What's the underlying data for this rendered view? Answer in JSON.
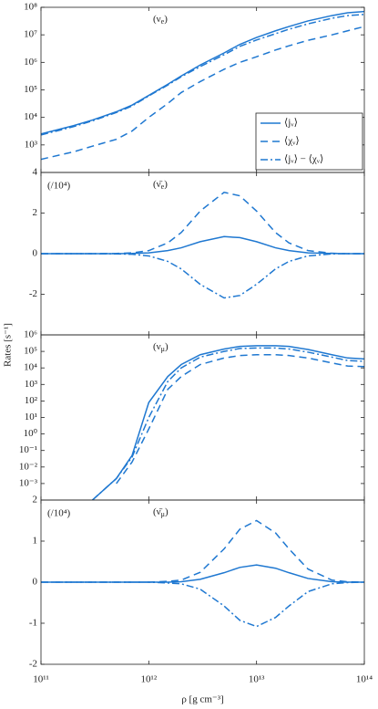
{
  "chart_data": [
    {
      "type": "line",
      "label": [
        "(ν",
        "e",
        ")"
      ],
      "xlim": [
        100000000000.0,
        100000000000000.0
      ],
      "xlog": true,
      "ylog": true,
      "ylim": [
        100,
        100000000
      ],
      "yticks": [
        {
          "value": 1000,
          "label": "10³"
        },
        {
          "value": 10000,
          "label": "10⁴"
        },
        {
          "value": 100000,
          "label": "10⁵"
        },
        {
          "value": 1000000,
          "label": "10⁶"
        },
        {
          "value": 10000000,
          "label": "10⁷"
        },
        {
          "value": 100000000,
          "label": "10⁸"
        }
      ],
      "legend": "lower right",
      "x": [
        100000000000.0,
        200000000000.0,
        300000000000.0,
        500000000000.0,
        700000000000.0,
        1000000000000.0,
        1500000000000.0,
        2000000000000.0,
        3000000000000.0,
        5000000000000.0,
        7000000000000.0,
        10000000000000.0,
        15000000000000.0,
        20000000000000.0,
        30000000000000.0,
        50000000000000.0,
        70000000000000.0,
        100000000000000.0
      ],
      "series": [
        {
          "name": "⟨jᵥ⟩",
          "color": "#1f78d1",
          "dash": "solid",
          "values": [
            2500,
            5000,
            8000,
            16000,
            28000,
            63000,
            160000,
            320000,
            800000,
            2200000,
            4500000,
            8000000,
            14000000,
            20000000,
            32000000,
            50000000,
            63000000,
            70000000
          ]
        },
        {
          "name": "⟨χᵥ⟩",
          "color": "#1f78d1",
          "dash": "dashed",
          "values": [
            300,
            560,
            900,
            1600,
            3200,
            10000,
            32000,
            80000,
            200000,
            560000,
            1000000,
            1600000,
            2800000,
            4000000,
            6300000,
            10000000,
            14000000,
            20000000
          ]
        },
        {
          "name": "⟨jᵥ⟩ − ⟨χᵥ⟩",
          "color": "#1f78d1",
          "dash": "dashdot",
          "values": [
            2300,
            4600,
            7500,
            15000,
            26000,
            60000,
            150000,
            300000,
            700000,
            1900000,
            3800000,
            6500000,
            11000000,
            16000000,
            25000000,
            40000000,
            50000000,
            55000000
          ]
        }
      ]
    },
    {
      "type": "line",
      "label": [
        "(ν̄",
        "e",
        ")"
      ],
      "scale_note": "(/10⁴)",
      "xlim": [
        100000000000.0,
        100000000000000.0
      ],
      "xlog": true,
      "ylog": false,
      "ylim": [
        -4,
        4
      ],
      "yticks": [
        -2,
        0,
        2,
        4
      ],
      "x": [
        100000000000.0,
        200000000000.0,
        300000000000.0,
        500000000000.0,
        700000000000.0,
        1000000000000.0,
        1500000000000.0,
        2000000000000.0,
        3000000000000.0,
        5000000000000.0,
        7000000000000.0,
        10000000000000.0,
        15000000000000.0,
        20000000000000.0,
        30000000000000.0,
        50000000000000.0,
        70000000000000.0,
        100000000000000.0
      ],
      "series": [
        {
          "color": "#1f78d1",
          "dash": "solid",
          "values": [
            0,
            0,
            0,
            0,
            0.01,
            0.04,
            0.15,
            0.29,
            0.59,
            0.84,
            0.79,
            0.59,
            0.29,
            0.15,
            0.04,
            0.01,
            0,
            0
          ]
        },
        {
          "color": "#1f78d1",
          "dash": "dashed",
          "values": [
            0,
            0,
            0,
            0.01,
            0.04,
            0.15,
            0.53,
            1.04,
            2.1,
            3.02,
            2.85,
            2.1,
            1.04,
            0.53,
            0.15,
            0.02,
            0,
            0
          ]
        },
        {
          "color": "#1f78d1",
          "dash": "dashdot",
          "values": [
            0,
            0,
            0,
            -0.01,
            -0.03,
            -0.11,
            -0.38,
            -0.75,
            -1.51,
            -2.18,
            -2.06,
            -1.51,
            -0.75,
            -0.38,
            -0.11,
            -0.01,
            0,
            0
          ]
        }
      ]
    },
    {
      "type": "line",
      "label": [
        "(ν",
        "μ",
        ")"
      ],
      "ylabel": "Rates [s⁻¹]",
      "xlim": [
        100000000000.0,
        100000000000000.0
      ],
      "xlog": true,
      "ylog": true,
      "ylim": [
        0.0001,
        1000000
      ],
      "yticks": [
        {
          "value": 0.001,
          "label": "10⁻³"
        },
        {
          "value": 0.01,
          "label": "10⁻²"
        },
        {
          "value": 0.1,
          "label": "10⁻¹"
        },
        {
          "value": 1,
          "label": "10⁰"
        },
        {
          "value": 10,
          "label": "10¹"
        },
        {
          "value": 100,
          "label": "10²"
        },
        {
          "value": 1000,
          "label": "10³"
        },
        {
          "value": 10000,
          "label": "10⁴"
        },
        {
          "value": 100000,
          "label": "10⁵"
        },
        {
          "value": 1000000,
          "label": "10⁶"
        }
      ],
      "x": [
        100000000000.0,
        200000000000.0,
        300000000000.0,
        500000000000.0,
        700000000000.0,
        1000000000000.0,
        1500000000000.0,
        2000000000000.0,
        3000000000000.0,
        5000000000000.0,
        7000000000000.0,
        10000000000000.0,
        15000000000000.0,
        20000000000000.0,
        30000000000000.0,
        50000000000000.0,
        70000000000000.0,
        100000000000000.0
      ],
      "series": [
        {
          "color": "#1f78d1",
          "dash": "solid",
          "values": [
            null,
            null,
            0.0001,
            0.002,
            0.05,
            80,
            3000,
            16000,
            63000,
            140000,
            200000,
            220000,
            220000,
            200000,
            130000,
            63000,
            40000,
            35000
          ]
        },
        {
          "color": "#1f78d1",
          "dash": "dashed",
          "values": [
            null,
            null,
            null,
            0.001,
            0.02,
            2,
            500,
            3000,
            16000,
            40000,
            56000,
            63000,
            63000,
            56000,
            40000,
            20000,
            13000,
            12000
          ]
        },
        {
          "color": "#1f78d1",
          "dash": "dashdot",
          "values": [
            null,
            null,
            0.0001,
            0.002,
            0.04,
            10,
            1500,
            10000,
            45000,
            100000,
            150000,
            160000,
            160000,
            140000,
            90000,
            45000,
            28000,
            25000
          ]
        }
      ]
    },
    {
      "type": "line",
      "label": [
        "(ν̄",
        "μ",
        ")"
      ],
      "scale_note": "(/10⁴)",
      "xlabel": "ρ  [g cm⁻³]",
      "xlim": [
        100000000000.0,
        100000000000000.0
      ],
      "xlog": true,
      "ylog": false,
      "ylim": [
        -2,
        2
      ],
      "yticks": [
        -2,
        -1,
        0,
        1,
        2
      ],
      "xticks": [
        {
          "value": 100000000000.0,
          "label": "10¹¹"
        },
        {
          "value": 1000000000000.0,
          "label": "10¹²"
        },
        {
          "value": 10000000000000.0,
          "label": "10¹³"
        },
        {
          "value": 100000000000000.0,
          "label": "10¹⁴"
        }
      ],
      "x": [
        100000000000.0,
        200000000000.0,
        300000000000.0,
        500000000000.0,
        700000000000.0,
        1000000000000.0,
        1500000000000.0,
        2000000000000.0,
        3000000000000.0,
        5000000000000.0,
        7000000000000.0,
        10000000000000.0,
        15000000000000.0,
        20000000000000.0,
        30000000000000.0,
        50000000000000.0,
        70000000000000.0,
        100000000000000.0
      ],
      "series": [
        {
          "color": "#1f78d1",
          "dash": "solid",
          "values": [
            0,
            0,
            0,
            0,
            0,
            0,
            0,
            0.01,
            0.07,
            0.23,
            0.36,
            0.42,
            0.34,
            0.23,
            0.09,
            0.01,
            0,
            0
          ]
        },
        {
          "color": "#1f78d1",
          "dash": "dashed",
          "values": [
            0,
            0,
            0,
            0,
            0,
            0,
            0.02,
            0.05,
            0.24,
            0.81,
            1.29,
            1.5,
            1.2,
            0.81,
            0.32,
            0.05,
            0.01,
            0
          ]
        },
        {
          "color": "#1f78d1",
          "dash": "dashdot",
          "values": [
            0,
            0,
            0,
            0,
            0,
            0,
            -0.02,
            -0.04,
            -0.17,
            -0.58,
            -0.93,
            -1.08,
            -0.86,
            -0.58,
            -0.23,
            -0.04,
            -0.01,
            0
          ]
        }
      ]
    }
  ]
}
